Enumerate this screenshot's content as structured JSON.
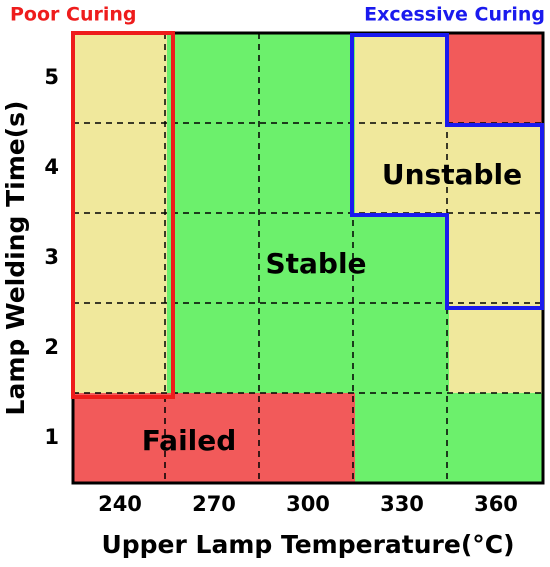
{
  "chart_data": {
    "type": "heatmap",
    "x_label": "Upper Lamp Temperature(°C)",
    "y_label": "Lamp Welding Time(s)",
    "x_categories": [
      240,
      270,
      300,
      330,
      360
    ],
    "y_categories": [
      1,
      2,
      3,
      4,
      5
    ],
    "cell_colors": [
      [
        "#f25a5a",
        "#f25a5a",
        "#f25a5a",
        "#6cf06c",
        "#6cf06c"
      ],
      [
        "#f0e89c",
        "#6cf06c",
        "#6cf06c",
        "#6cf06c",
        "#f0e89c"
      ],
      [
        "#f0e89c",
        "#6cf06c",
        "#6cf06c",
        "#6cf06c",
        "#f0e89c"
      ],
      [
        "#f0e89c",
        "#6cf06c",
        "#6cf06c",
        "#f0e89c",
        "#f0e89c"
      ],
      [
        "#f0e89c",
        "#6cf06c",
        "#6cf06c",
        "#f0e89c",
        "#f25a5a"
      ]
    ],
    "grid": true,
    "region_labels": [
      "Failed",
      "Stable",
      "Unstable"
    ],
    "annotations": [
      {
        "text": "Poor Curing",
        "color": "#ee1c1c"
      },
      {
        "text": "Excessive Curing",
        "color": "#1a1aee"
      }
    ]
  }
}
